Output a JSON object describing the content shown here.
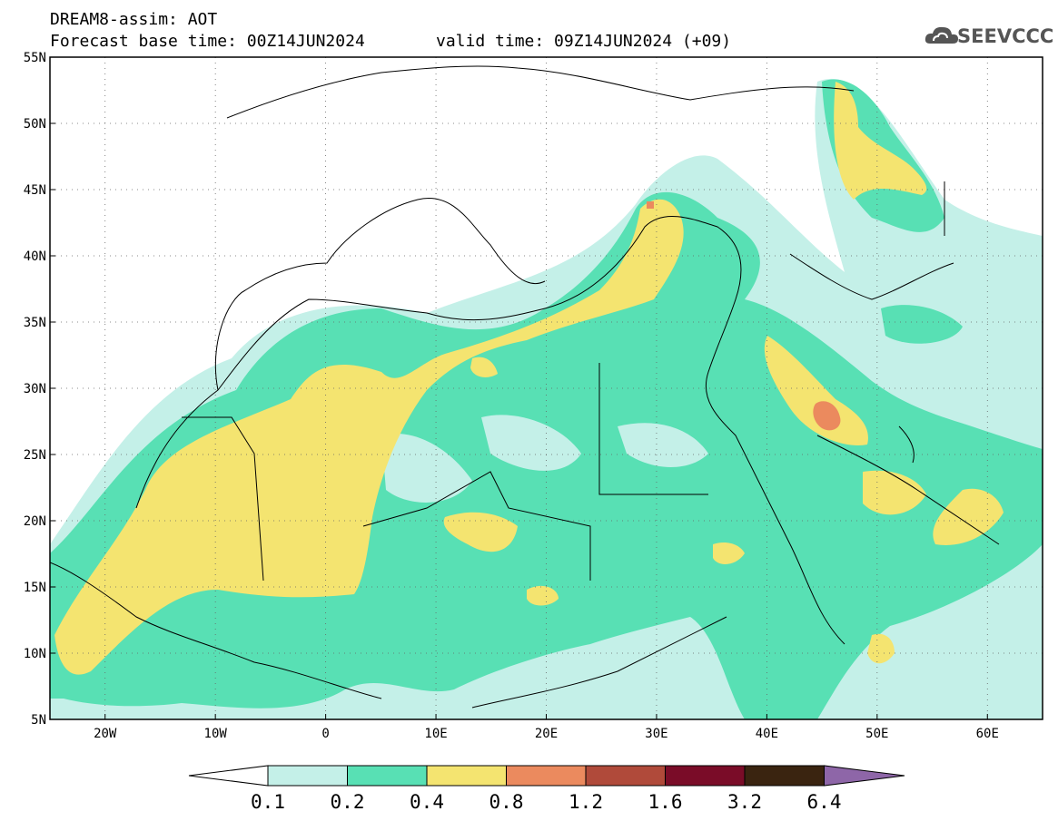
{
  "header": {
    "line1": "DREAM8-assim: AOT",
    "line2_left": "Forecast base time: 00Z14JUN2024",
    "line2_right": "valid time: 09Z14JUN2024 (+09)"
  },
  "logo": {
    "text": "SEEVCCC",
    "icon": "cloud-logo-icon"
  },
  "map": {
    "lat_ticks": [
      "55N",
      "50N",
      "45N",
      "40N",
      "35N",
      "30N",
      "25N",
      "20N",
      "15N",
      "10N",
      "5N"
    ],
    "lon_ticks": [
      "20W",
      "10W",
      "0",
      "10E",
      "20E",
      "30E",
      "40E",
      "50E",
      "60E"
    ],
    "lon_range": [
      -25,
      65
    ],
    "lat_range": [
      5,
      55
    ]
  },
  "colorbar": {
    "labels": [
      "0.1",
      "0.2",
      "0.4",
      "0.8",
      "1.2",
      "1.6",
      "3.2",
      "6.4"
    ],
    "colors": [
      "#c4f0e8",
      "#58e0b4",
      "#f4e470",
      "#eb8a5e",
      "#b04a3a",
      "#7a0c28",
      "#3a2410",
      "#8e66a8"
    ]
  }
}
